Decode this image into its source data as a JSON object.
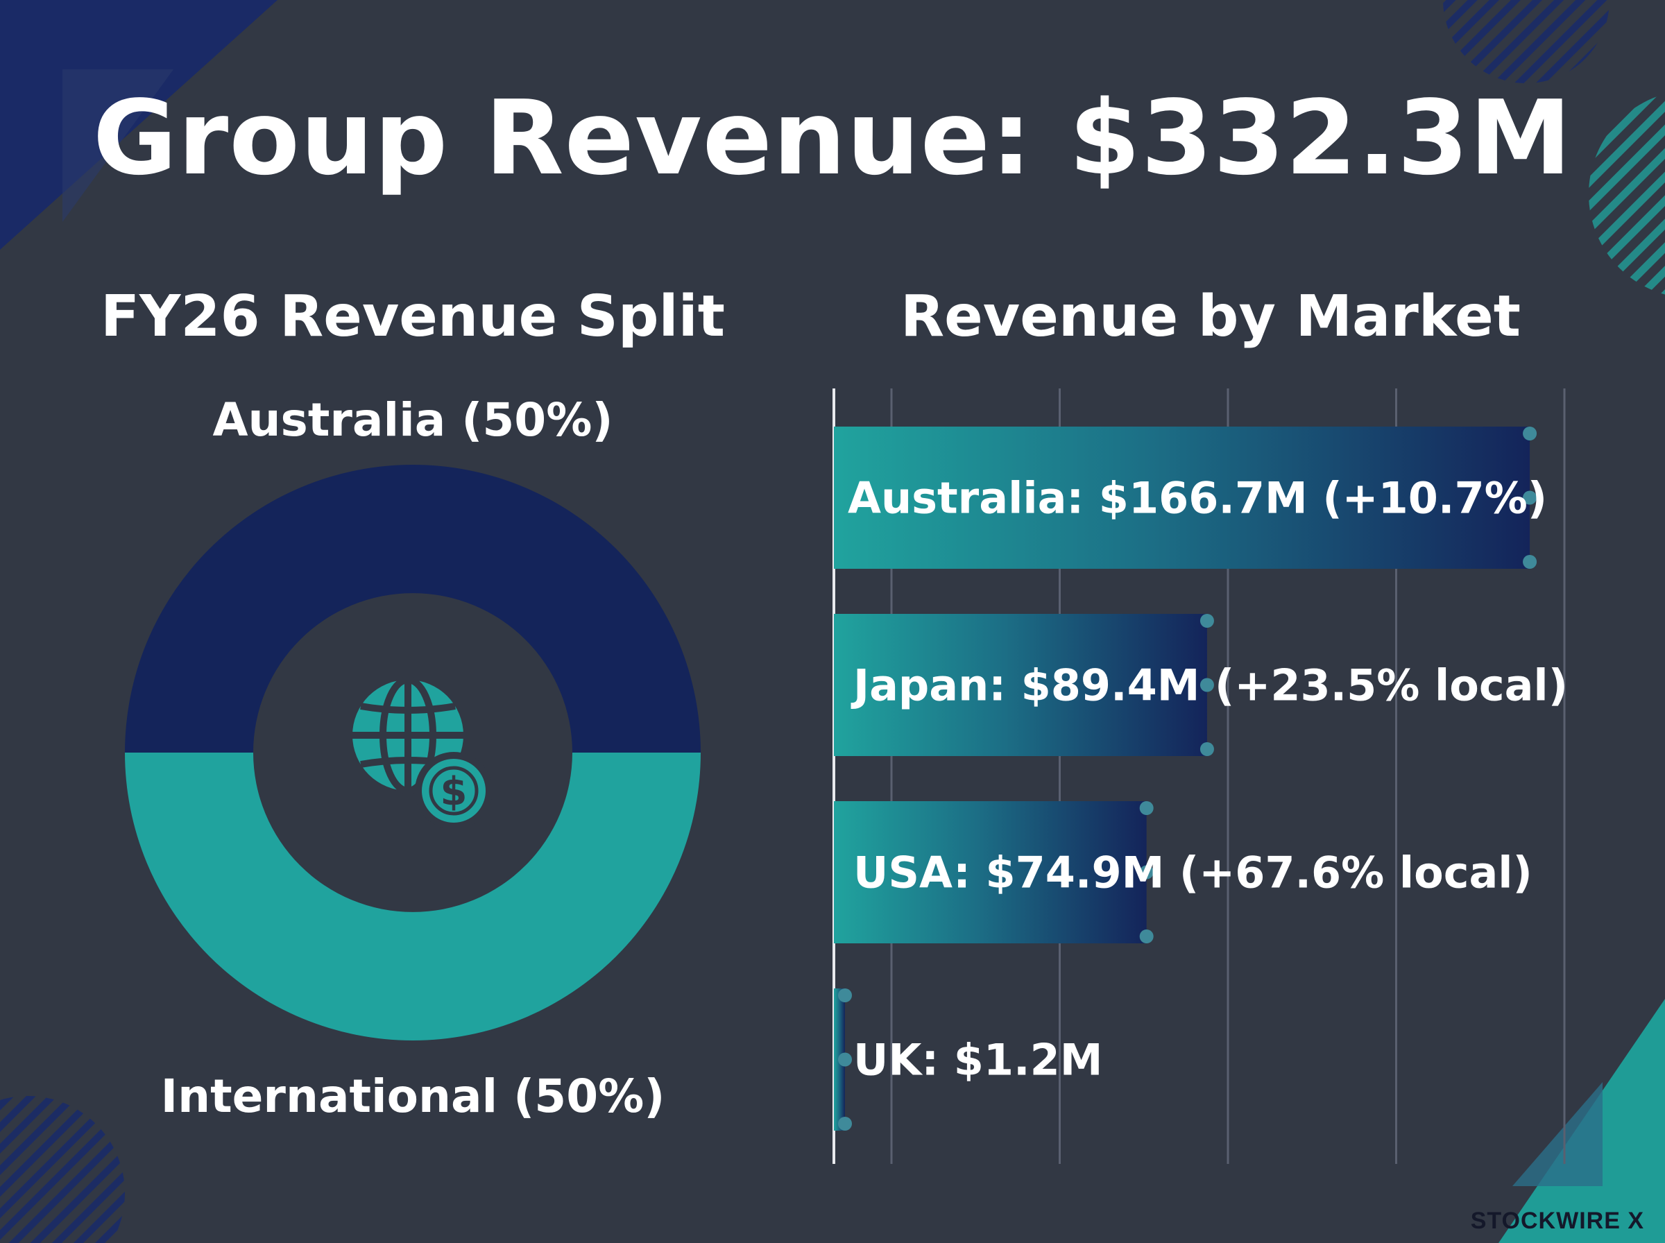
{
  "title": "Group Revenue: $332.3M",
  "brand": "STOCKWIRE X",
  "colors": {
    "background": "#323844",
    "navy": "#14245a",
    "teal": "#20a39e",
    "grid": "#5a6070"
  },
  "chart_data": [
    {
      "type": "pie",
      "title": "FY26 Revenue Split",
      "center_icon": "globe-dollar-icon",
      "slices": [
        {
          "label": "Australia (50%)",
          "value": 50,
          "color": "#14245a"
        },
        {
          "label": "International (50%)",
          "value": 50,
          "color": "#20a39e"
        }
      ]
    },
    {
      "type": "bar",
      "orientation": "horizontal",
      "title": "Revenue by Market",
      "grid": true,
      "categories": [
        "Australia",
        "Japan",
        "USA",
        "UK"
      ],
      "values": [
        166.7,
        89.4,
        74.9,
        1.2
      ],
      "labels": [
        "Australia: $166.7M (+10.7%)",
        "Japan: $89.4M (+23.5% local)",
        "USA: $74.9M (+67.6% local)",
        "UK: $1.2M"
      ],
      "xlim": [
        0,
        175
      ]
    }
  ]
}
